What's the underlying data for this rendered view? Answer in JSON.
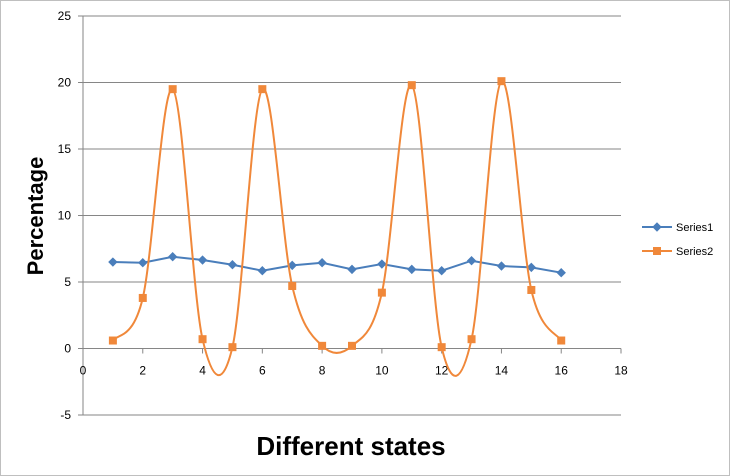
{
  "chart_data": {
    "type": "scatter",
    "title": "",
    "xlabel": "Different states",
    "ylabel": "Percentage",
    "xlim": [
      0,
      18
    ],
    "ylim": [
      -5,
      25
    ],
    "x_ticks": [
      0,
      2,
      4,
      6,
      8,
      10,
      12,
      14,
      16,
      18
    ],
    "y_ticks": [
      -5,
      0,
      5,
      10,
      15,
      20,
      25
    ],
    "grid": "horizontal",
    "legend_position": "right",
    "series": [
      {
        "name": "Series1",
        "color": "#4A7EBB",
        "marker": "diamond",
        "smooth": false,
        "x": [
          1,
          2,
          3,
          4,
          5,
          6,
          7,
          8,
          9,
          10,
          11,
          12,
          13,
          14,
          15,
          16
        ],
        "y": [
          6.5,
          6.45,
          6.9,
          6.65,
          6.3,
          5.85,
          6.25,
          6.45,
          5.95,
          6.35,
          5.95,
          5.85,
          6.6,
          6.2,
          6.1,
          5.7
        ]
      },
      {
        "name": "Series2",
        "color": "#F0883A",
        "marker": "square",
        "smooth": true,
        "x": [
          1,
          2,
          3,
          4,
          5,
          6,
          7,
          8,
          9,
          10,
          11,
          12,
          13,
          14,
          15,
          16
        ],
        "y": [
          0.6,
          3.8,
          19.5,
          0.7,
          0.1,
          19.5,
          4.7,
          0.2,
          0.2,
          4.2,
          19.8,
          0.1,
          0.7,
          20.1,
          4.4,
          0.6
        ]
      }
    ]
  }
}
